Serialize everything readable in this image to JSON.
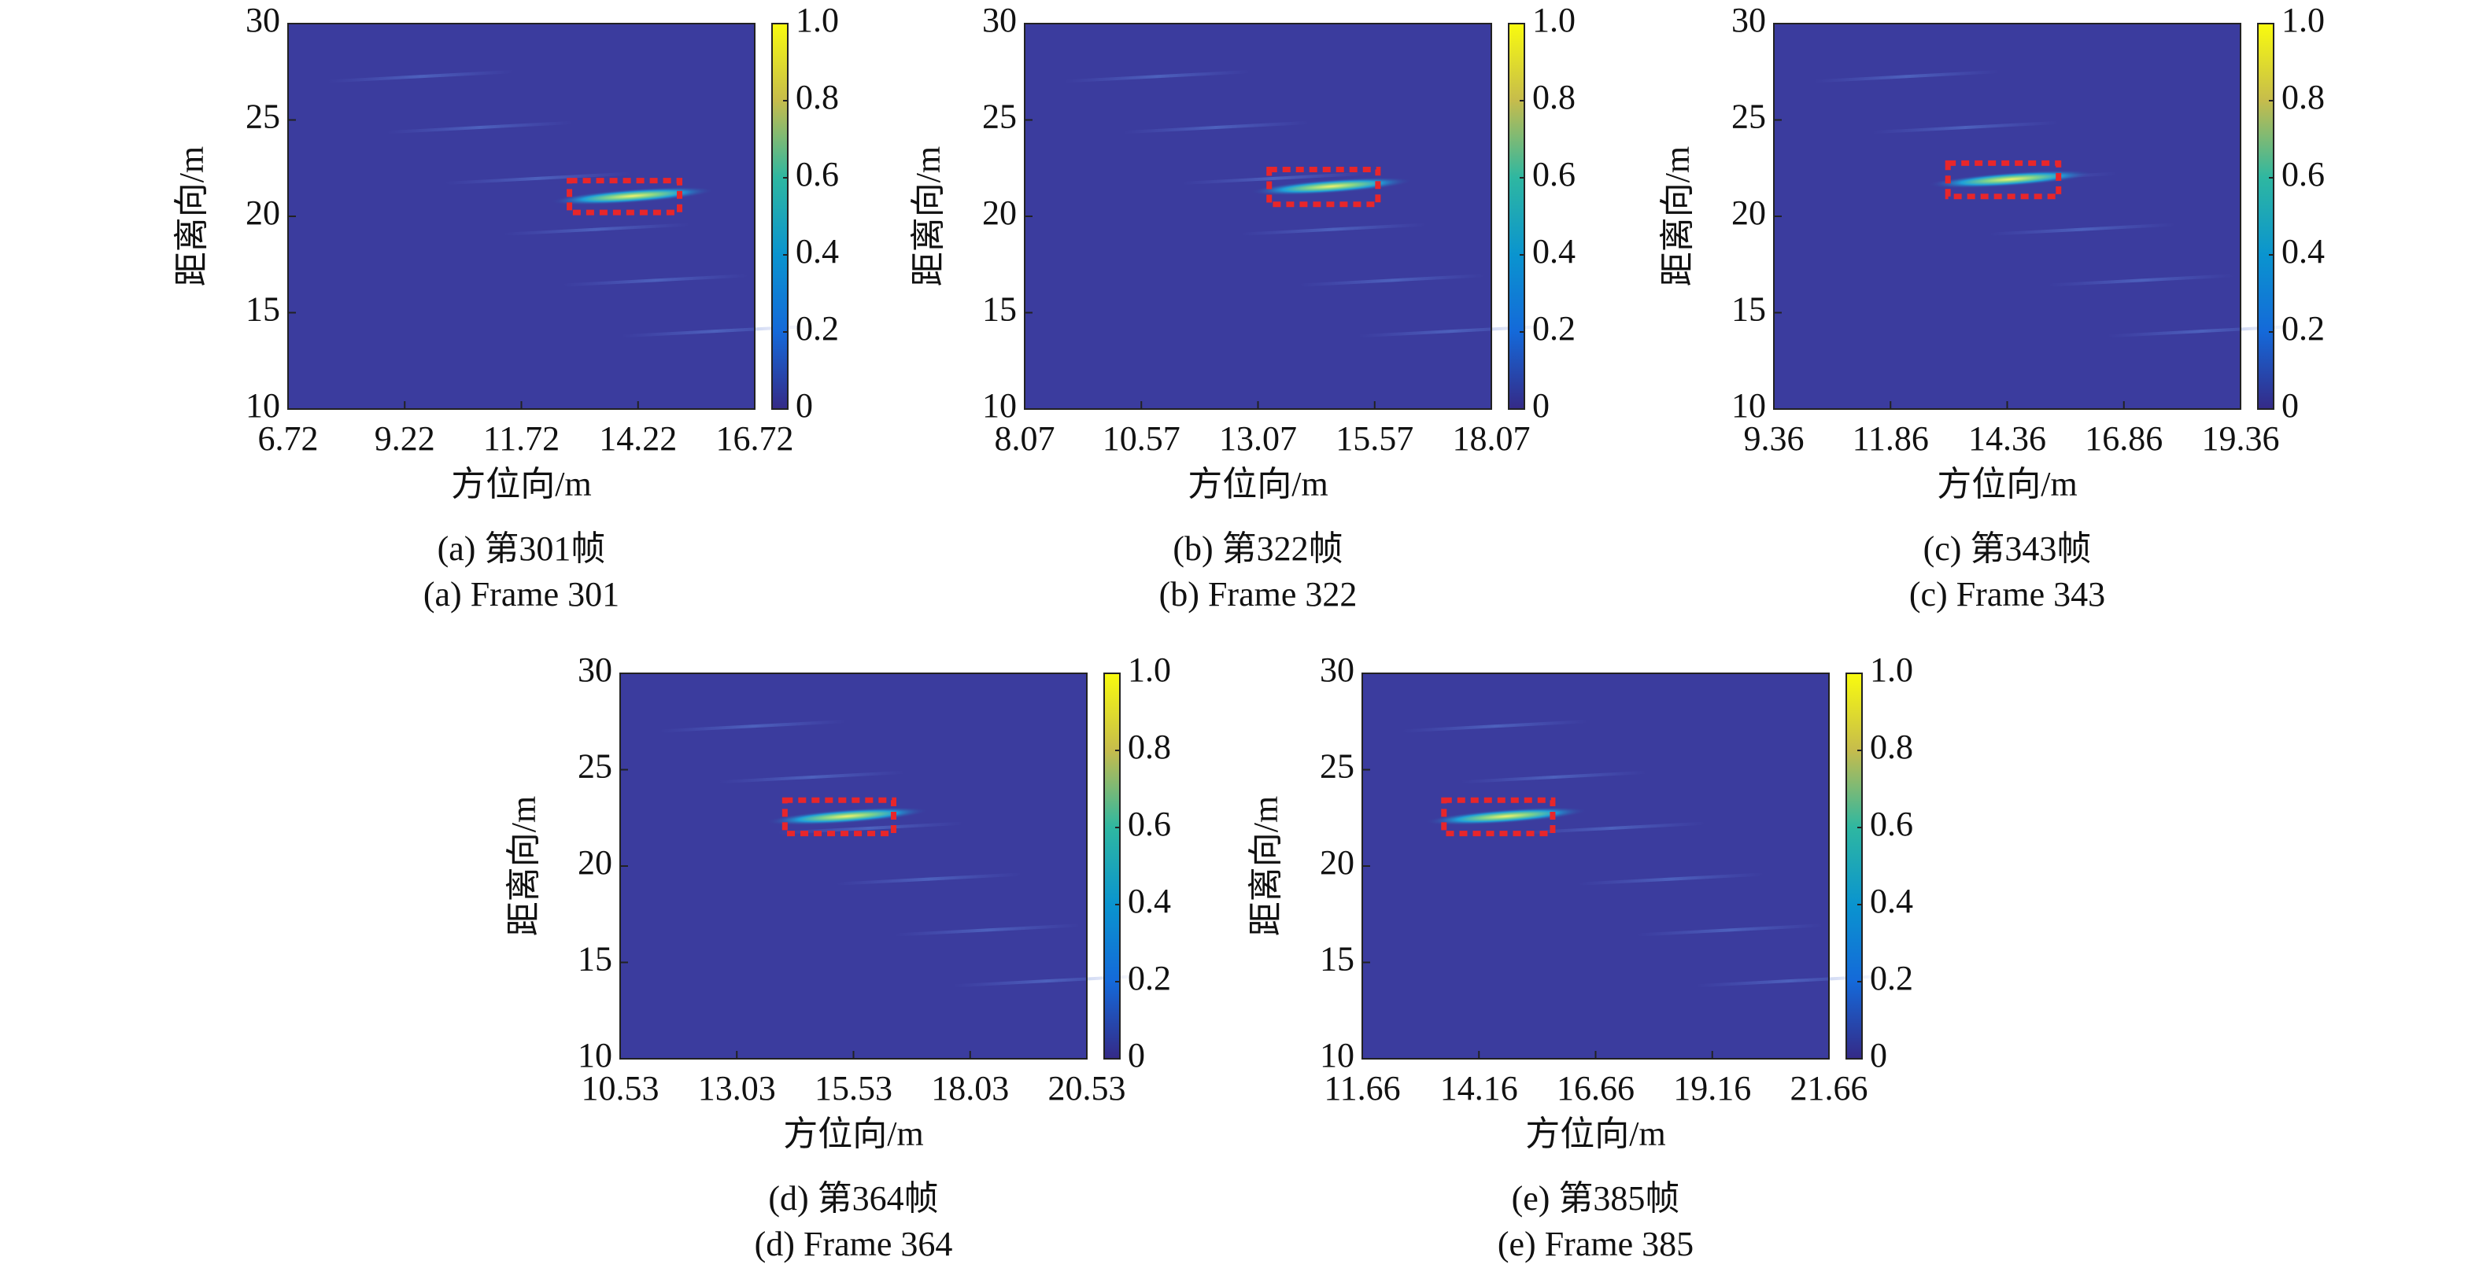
{
  "chart_data": [
    {
      "type": "heatmap",
      "xlabel": "方位向/m",
      "ylabel": "距离向/m",
      "caption_cn": "(a) 第301帧",
      "caption_en": "(a) Frame 301",
      "xlim": [
        6.72,
        16.72
      ],
      "xticks": [
        6.72,
        9.22,
        11.72,
        14.22,
        16.72
      ],
      "ylim": [
        10,
        30
      ],
      "yticks": [
        10,
        15,
        20,
        25,
        30
      ],
      "clim": [
        0,
        1
      ],
      "cticks": [
        0,
        0.2,
        0.4,
        0.6,
        0.8,
        {
          "value": 1,
          "label": "1.0"
        }
      ],
      "colormap": "parula",
      "highlight": {
        "x": [
          12.75,
          15.11
        ],
        "y": [
          20.2,
          21.85
        ]
      },
      "highlight_color": "#e8262a"
    },
    {
      "type": "heatmap",
      "xlabel": "方位向/m",
      "ylabel": "距离向/m",
      "caption_cn": "(b) 第322帧",
      "caption_en": "(b) Frame 322",
      "xlim": [
        8.07,
        18.07
      ],
      "xticks": [
        8.07,
        10.57,
        13.07,
        15.57,
        18.07
      ],
      "ylim": [
        10,
        30
      ],
      "yticks": [
        10,
        15,
        20,
        25,
        30
      ],
      "clim": [
        0,
        1
      ],
      "cticks": [
        0,
        0.2,
        0.4,
        0.6,
        0.8,
        {
          "value": 1,
          "label": "1.0"
        }
      ],
      "colormap": "parula",
      "highlight": {
        "x": [
          13.31,
          15.64
        ],
        "y": [
          20.62,
          22.43
        ]
      },
      "highlight_color": "#e8262a"
    },
    {
      "type": "heatmap",
      "xlabel": "方位向/m",
      "ylabel": "距离向/m",
      "caption_cn": "(c) 第343帧",
      "caption_en": "(c) Frame 343",
      "xlim": [
        9.36,
        19.36
      ],
      "xticks": [
        9.36,
        11.86,
        14.36,
        16.86,
        19.36
      ],
      "ylim": [
        10,
        30
      ],
      "yticks": [
        10,
        15,
        20,
        25,
        30
      ],
      "clim": [
        0,
        1
      ],
      "cticks": [
        0,
        0.2,
        0.4,
        0.6,
        0.8,
        {
          "value": 1,
          "label": "1.0"
        }
      ],
      "colormap": "parula",
      "highlight": {
        "x": [
          13.09,
          15.46
        ],
        "y": [
          21.03,
          22.76
        ]
      },
      "highlight_color": "#e8262a"
    },
    {
      "type": "heatmap",
      "xlabel": "方位向/m",
      "ylabel": "距离向/m",
      "caption_cn": "(d) 第364帧",
      "caption_en": "(d) Frame 364",
      "xlim": [
        10.53,
        20.53
      ],
      "xticks": [
        10.53,
        13.03,
        15.53,
        18.03,
        20.53
      ],
      "ylim": [
        10,
        30
      ],
      "yticks": [
        10,
        15,
        20,
        25,
        30
      ],
      "clim": [
        0,
        1
      ],
      "cticks": [
        0,
        0.2,
        0.4,
        0.6,
        0.8,
        {
          "value": 1,
          "label": "1.0"
        }
      ],
      "colormap": "parula",
      "highlight": {
        "x": [
          14.06,
          16.39
        ],
        "y": [
          21.69,
          23.42
        ]
      },
      "highlight_color": "#e8262a"
    },
    {
      "type": "heatmap",
      "xlabel": "方位向/m",
      "ylabel": "距离向/m",
      "caption_cn": "(e) 第385帧",
      "caption_en": "(e) Frame 385",
      "xlim": [
        11.66,
        21.66
      ],
      "xticks": [
        11.66,
        14.16,
        16.66,
        19.16,
        21.66
      ],
      "ylim": [
        10,
        30
      ],
      "yticks": [
        10,
        15,
        20,
        25,
        30
      ],
      "clim": [
        0,
        1
      ],
      "cticks": [
        0,
        0.2,
        0.4,
        0.6,
        0.8,
        {
          "value": 1,
          "label": "1.0"
        }
      ],
      "colormap": "parula",
      "highlight": {
        "x": [
          13.41,
          15.74
        ],
        "y": [
          21.69,
          23.42
        ]
      },
      "highlight_color": "#e8262a"
    }
  ]
}
